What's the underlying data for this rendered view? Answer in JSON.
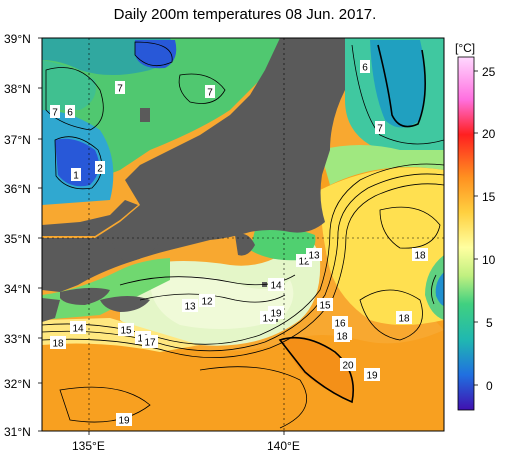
{
  "title": "Daily 200m temperatures 08 Jun. 2017.",
  "axes": {
    "lat_labels": [
      "39°N",
      "38°N",
      "37°N",
      "36°N",
      "35°N",
      "34°N",
      "33°N",
      "32°N",
      "31°N"
    ],
    "lon_labels": [
      "135°E",
      "140°E"
    ]
  },
  "colorbar": {
    "unit": "[°C]",
    "ticks": [
      "25",
      "20",
      "15",
      "10",
      "5",
      "0"
    ],
    "colors": [
      "#ffd0ff",
      "#ff80ff",
      "#ff2020",
      "#ff8020",
      "#ffd040",
      "#ffff90",
      "#c8f080",
      "#40d080",
      "#20b8b0",
      "#2070e0",
      "#4020c0"
    ]
  },
  "contour_labels": [
    "6",
    "7",
    "7",
    "6",
    "7",
    "1",
    "2",
    "7",
    "12",
    "13",
    "14",
    "13",
    "12",
    "15",
    "14",
    "15",
    "16",
    "16",
    "17",
    "18",
    "19",
    "18",
    "16",
    "17",
    "18",
    "20",
    "19",
    "19",
    "18"
  ],
  "colors": {
    "land": "#5a5a5a",
    "cold": "#3050d0",
    "cool": "#20a0c0",
    "mild": "#50d070",
    "pale": "#e0f4c0",
    "warm": "#ffe050",
    "hot": "#f8a020"
  }
}
